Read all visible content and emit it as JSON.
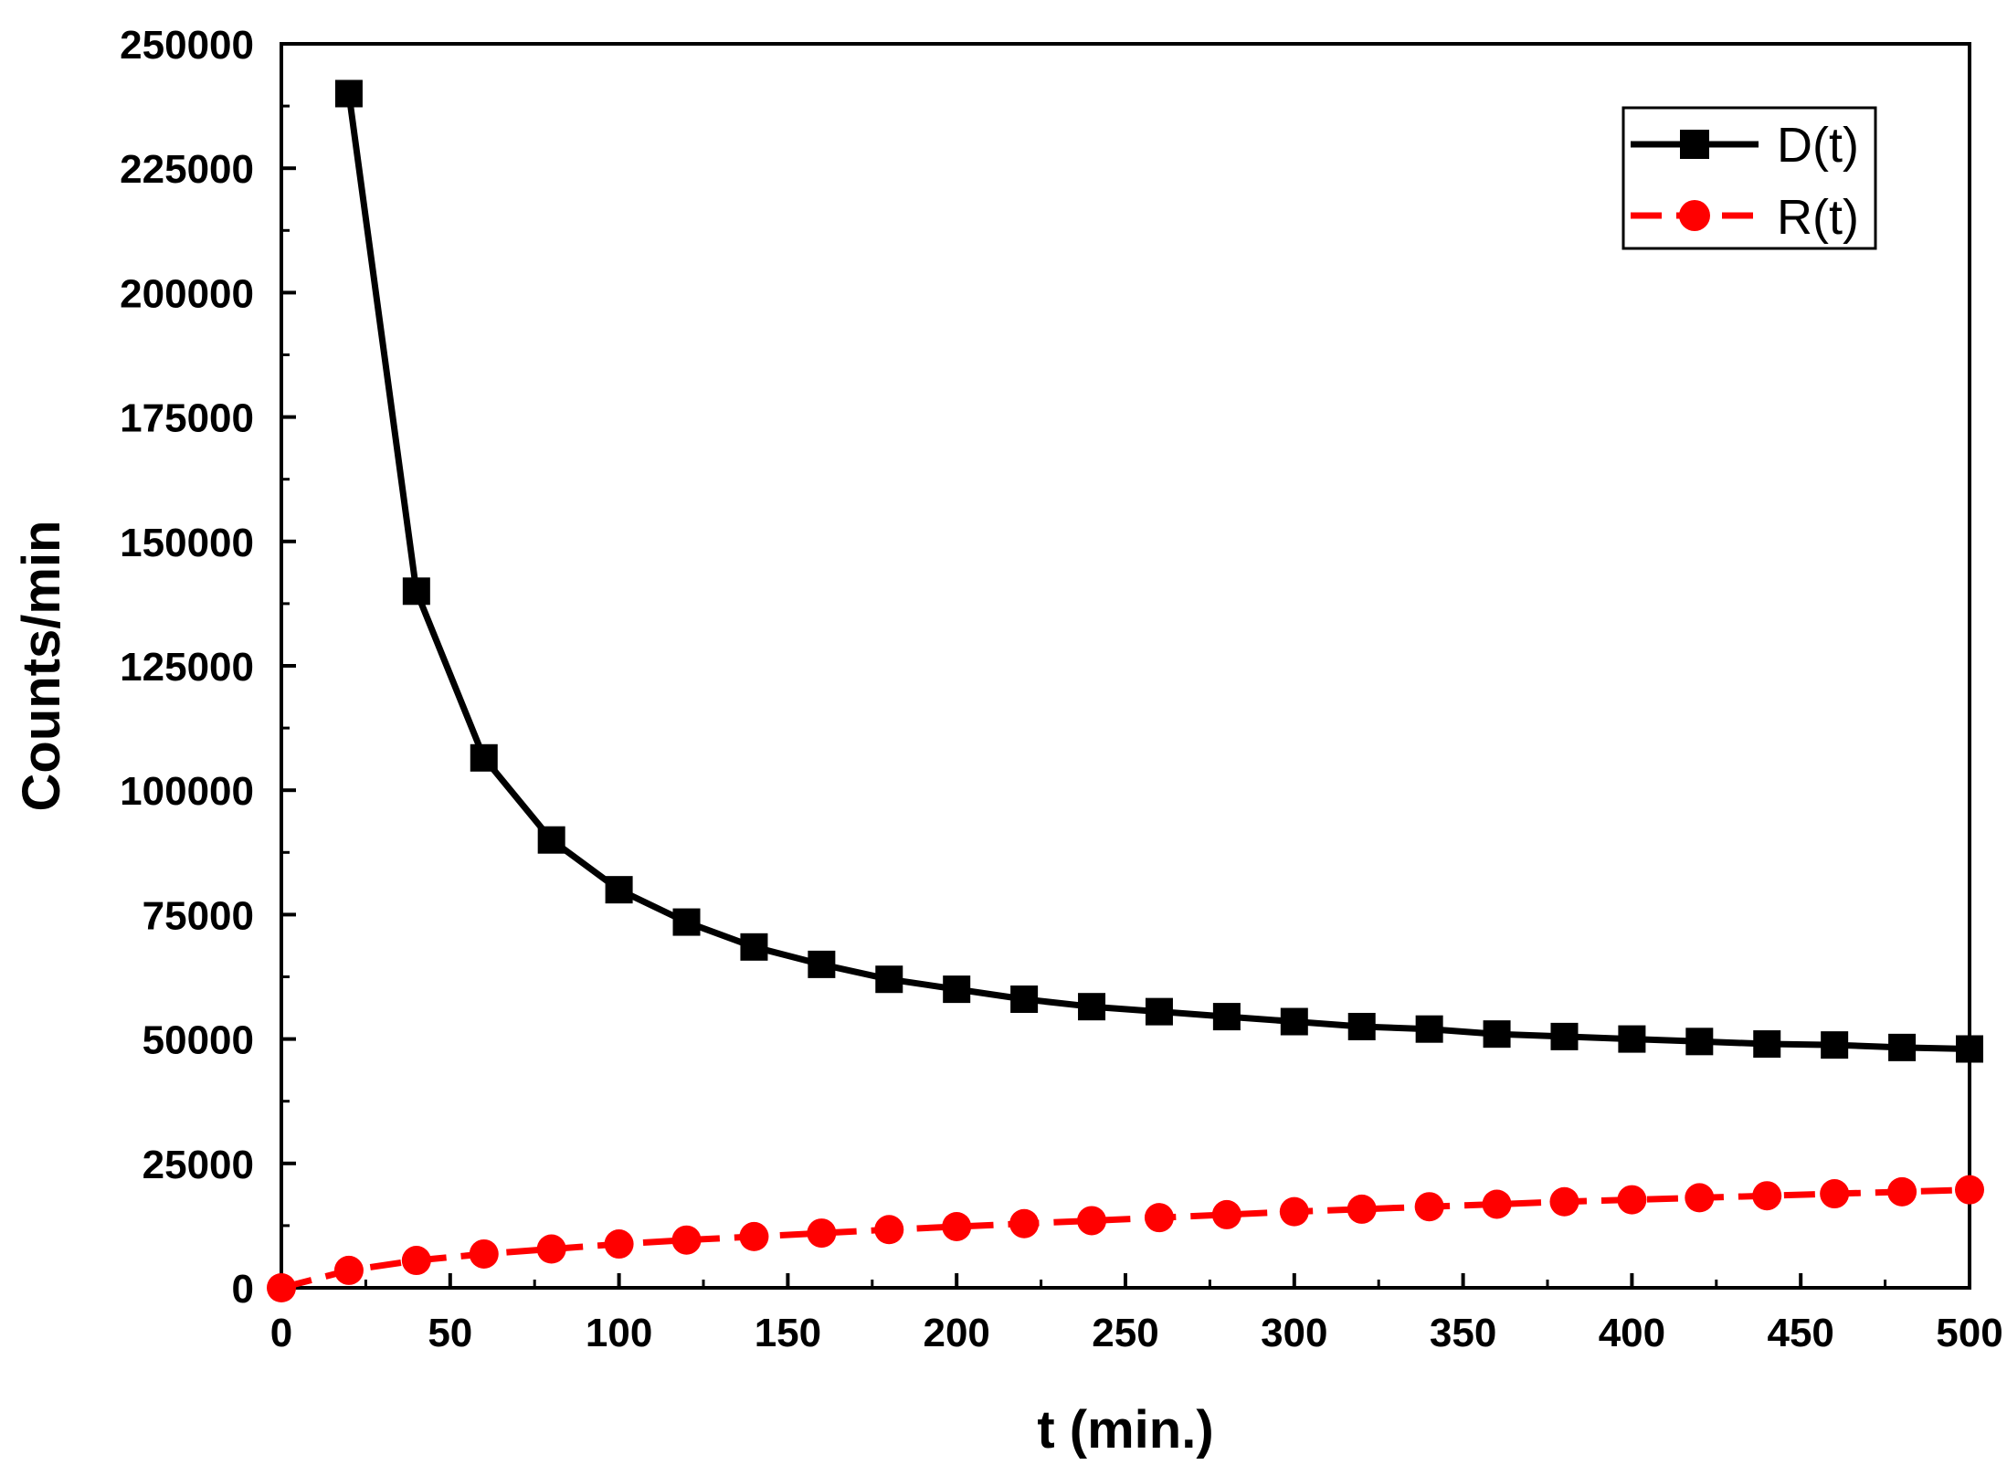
{
  "chart_data": {
    "type": "line",
    "title": "",
    "xlabel": "t (min.)",
    "ylabel": "Counts/min",
    "xlim": [
      0,
      500
    ],
    "ylim": [
      0,
      250000
    ],
    "x_ticks": [
      "0",
      "50",
      "100",
      "150",
      "200",
      "250",
      "300",
      "350",
      "400",
      "450",
      "500"
    ],
    "y_ticks": [
      "0",
      "25000",
      "50000",
      "75000",
      "100000",
      "125000",
      "150000",
      "175000",
      "200000",
      "225000",
      "250000"
    ],
    "grid": false,
    "legend_position": "top-right",
    "series": [
      {
        "name": "D(t)",
        "color": "#000000",
        "marker": "square",
        "line": "solid",
        "x": [
          20,
          40,
          60,
          80,
          100,
          120,
          140,
          160,
          180,
          200,
          220,
          240,
          260,
          280,
          300,
          320,
          340,
          360,
          380,
          400,
          420,
          440,
          460,
          480,
          500
        ],
        "values": [
          240000,
          140000,
          106500,
          90000,
          80000,
          73500,
          68500,
          65000,
          62000,
          60000,
          58000,
          56500,
          55500,
          54500,
          53500,
          52500,
          52000,
          51000,
          50500,
          50000,
          49500,
          49000,
          48800,
          48300,
          48000
        ]
      },
      {
        "name": "R(t)",
        "color": "#ff0000",
        "marker": "circle",
        "line": "dashed",
        "x": [
          0,
          20,
          40,
          60,
          80,
          100,
          120,
          140,
          160,
          180,
          200,
          220,
          240,
          260,
          280,
          300,
          320,
          340,
          360,
          380,
          400,
          420,
          440,
          460,
          480,
          500
        ],
        "values": [
          0,
          3500,
          5500,
          6800,
          7800,
          8800,
          9600,
          10300,
          11000,
          11700,
          12300,
          12900,
          13500,
          14100,
          14700,
          15300,
          15800,
          16300,
          16800,
          17300,
          17700,
          18100,
          18500,
          18900,
          19300,
          19700
        ]
      }
    ]
  }
}
